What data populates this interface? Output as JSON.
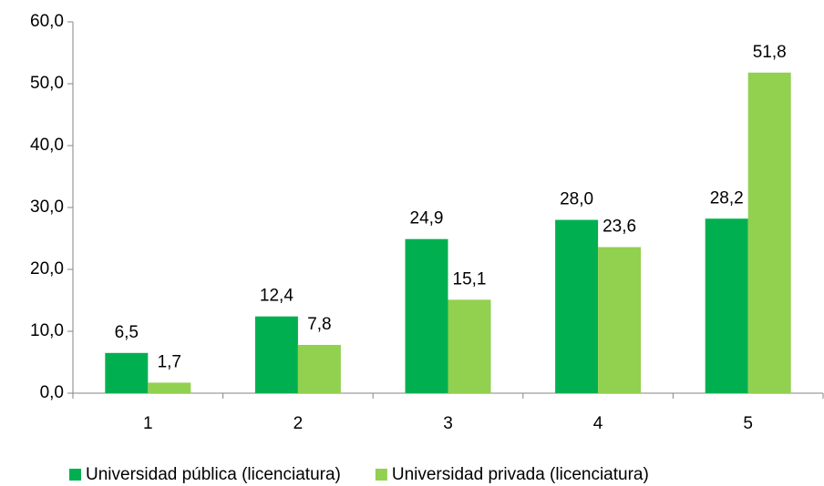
{
  "chart_data": {
    "type": "bar",
    "categories": [
      "1",
      "2",
      "3",
      "4",
      "5"
    ],
    "series": [
      {
        "name": "Universidad pública (licenciatura)",
        "color": "#00b050",
        "values": [
          6.5,
          12.4,
          24.9,
          28.0,
          28.2
        ],
        "value_labels": [
          "6,5",
          "12,4",
          "24,9",
          "28,0",
          "28,2"
        ]
      },
      {
        "name": "Universidad privada (licenciatura)",
        "color": "#92d050",
        "values": [
          1.7,
          7.8,
          15.1,
          23.6,
          51.8
        ],
        "value_labels": [
          "1,7",
          "7,8",
          "15,1",
          "23,6",
          "51,8"
        ]
      }
    ],
    "ylim": [
      0,
      60
    ],
    "yticks": [
      {
        "value": 0,
        "label": "0,0"
      },
      {
        "value": 10,
        "label": "10,0"
      },
      {
        "value": 20,
        "label": "20,0"
      },
      {
        "value": 30,
        "label": "30,0"
      },
      {
        "value": 40,
        "label": "40,0"
      },
      {
        "value": 50,
        "label": "50,0"
      },
      {
        "value": 60,
        "label": "60,0"
      }
    ],
    "grid": false,
    "legend": "bottom"
  }
}
